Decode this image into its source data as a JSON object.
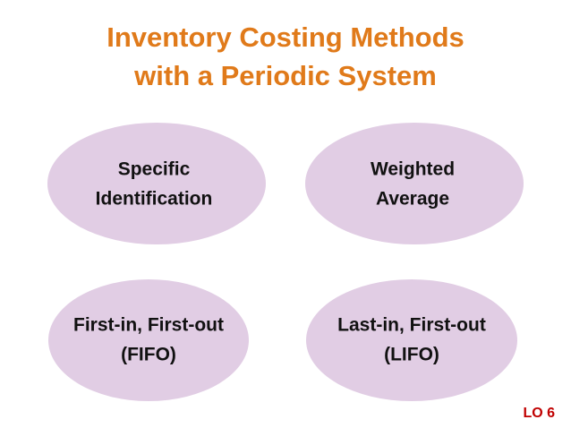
{
  "title": [
    "Inventory Costing Methods",
    "with a Periodic System"
  ],
  "nodes": [
    {
      "lines": [
        "Specific",
        "Identification"
      ]
    },
    {
      "lines": [
        "Weighted",
        "Average"
      ]
    },
    {
      "lines": [
        "First-in, First-out",
        "(FIFO)"
      ]
    },
    {
      "lines": [
        "Last-in, First-out",
        "(LIFO)"
      ]
    }
  ],
  "footer": "LO 6"
}
